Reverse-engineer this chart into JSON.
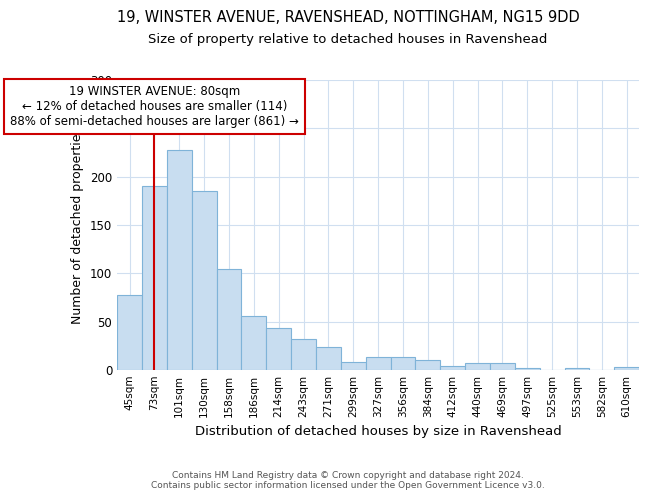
{
  "title_line1": "19, WINSTER AVENUE, RAVENSHEAD, NOTTINGHAM, NG15 9DD",
  "title_line2": "Size of property relative to detached houses in Ravenshead",
  "xlabel": "Distribution of detached houses by size in Ravenshead",
  "ylabel": "Number of detached properties",
  "categories": [
    "45sqm",
    "73sqm",
    "101sqm",
    "130sqm",
    "158sqm",
    "186sqm",
    "214sqm",
    "243sqm",
    "271sqm",
    "299sqm",
    "327sqm",
    "356sqm",
    "384sqm",
    "412sqm",
    "440sqm",
    "469sqm",
    "497sqm",
    "525sqm",
    "553sqm",
    "582sqm",
    "610sqm"
  ],
  "values": [
    78,
    190,
    228,
    185,
    105,
    56,
    43,
    32,
    24,
    8,
    13,
    13,
    10,
    4,
    7,
    7,
    2,
    0,
    2,
    0,
    3
  ],
  "bar_color": "#c8ddf0",
  "bar_edge_color": "#7fb3d8",
  "vline_x": 1.5,
  "vline_color": "#cc0000",
  "annotation_text": "19 WINSTER AVENUE: 80sqm\n← 12% of detached houses are smaller (114)\n88% of semi-detached houses are larger (861) →",
  "annotation_box_color": "#ffffff",
  "annotation_box_edge": "#cc0000",
  "footer_text": "Contains HM Land Registry data © Crown copyright and database right 2024.\nContains public sector information licensed under the Open Government Licence v3.0.",
  "ylim": [
    0,
    300
  ],
  "yticks": [
    0,
    50,
    100,
    150,
    200,
    250,
    300
  ],
  "fig_bg_color": "#ffffff",
  "plot_bg_color": "#ffffff",
  "grid_color": "#d0dff0",
  "title_fontsize": 10.5,
  "subtitle_fontsize": 9.5,
  "tick_fontsize": 7.5,
  "ylabel_fontsize": 9,
  "xlabel_fontsize": 9.5,
  "annotation_fontsize": 8.5,
  "footer_fontsize": 6.5
}
